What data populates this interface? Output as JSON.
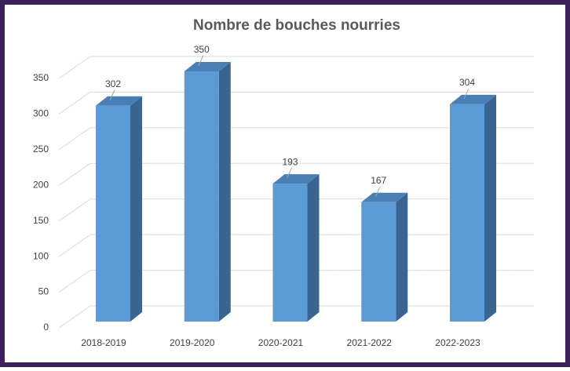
{
  "chart_data": {
    "type": "bar",
    "title": "Nombre de bouches nourries",
    "categories": [
      "2018-2019",
      "2019-2020",
      "2020-2021",
      "2021-2022",
      "2022-2023"
    ],
    "values": [
      302,
      350,
      193,
      167,
      304
    ],
    "color": "#5b9bd5",
    "ylim": [
      0,
      350
    ],
    "yticks": [
      0,
      50,
      100,
      150,
      200,
      250,
      300,
      350
    ],
    "grid": true
  }
}
